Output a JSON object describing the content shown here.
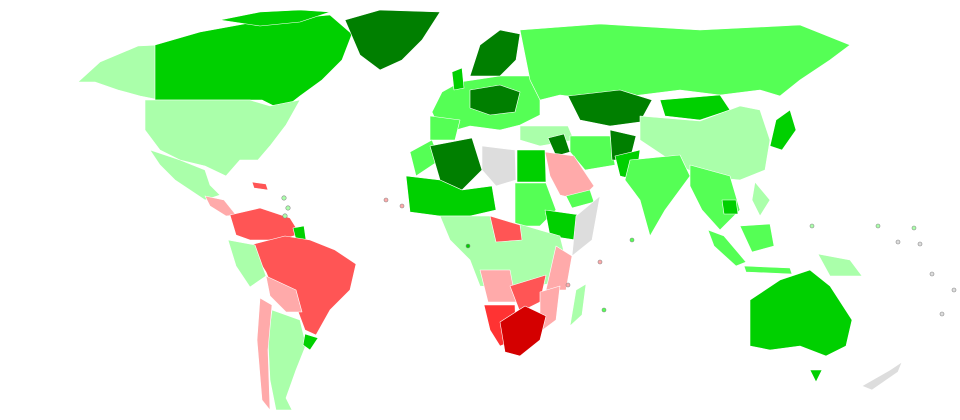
{
  "map": {
    "type": "choropleth-world",
    "palette": {
      "dark-green": "#007f00",
      "green": "#00d000",
      "light-green": "#55ff55",
      "pale-green": "#aaffaa",
      "pale-red": "#ffaaaa",
      "red": "#ff5555",
      "bright-red": "#ff3333",
      "dark-red": "#d40000",
      "no-data": "#dddddd"
    },
    "ocean_color": "#ffffff",
    "border_color": "#ffffff"
  }
}
